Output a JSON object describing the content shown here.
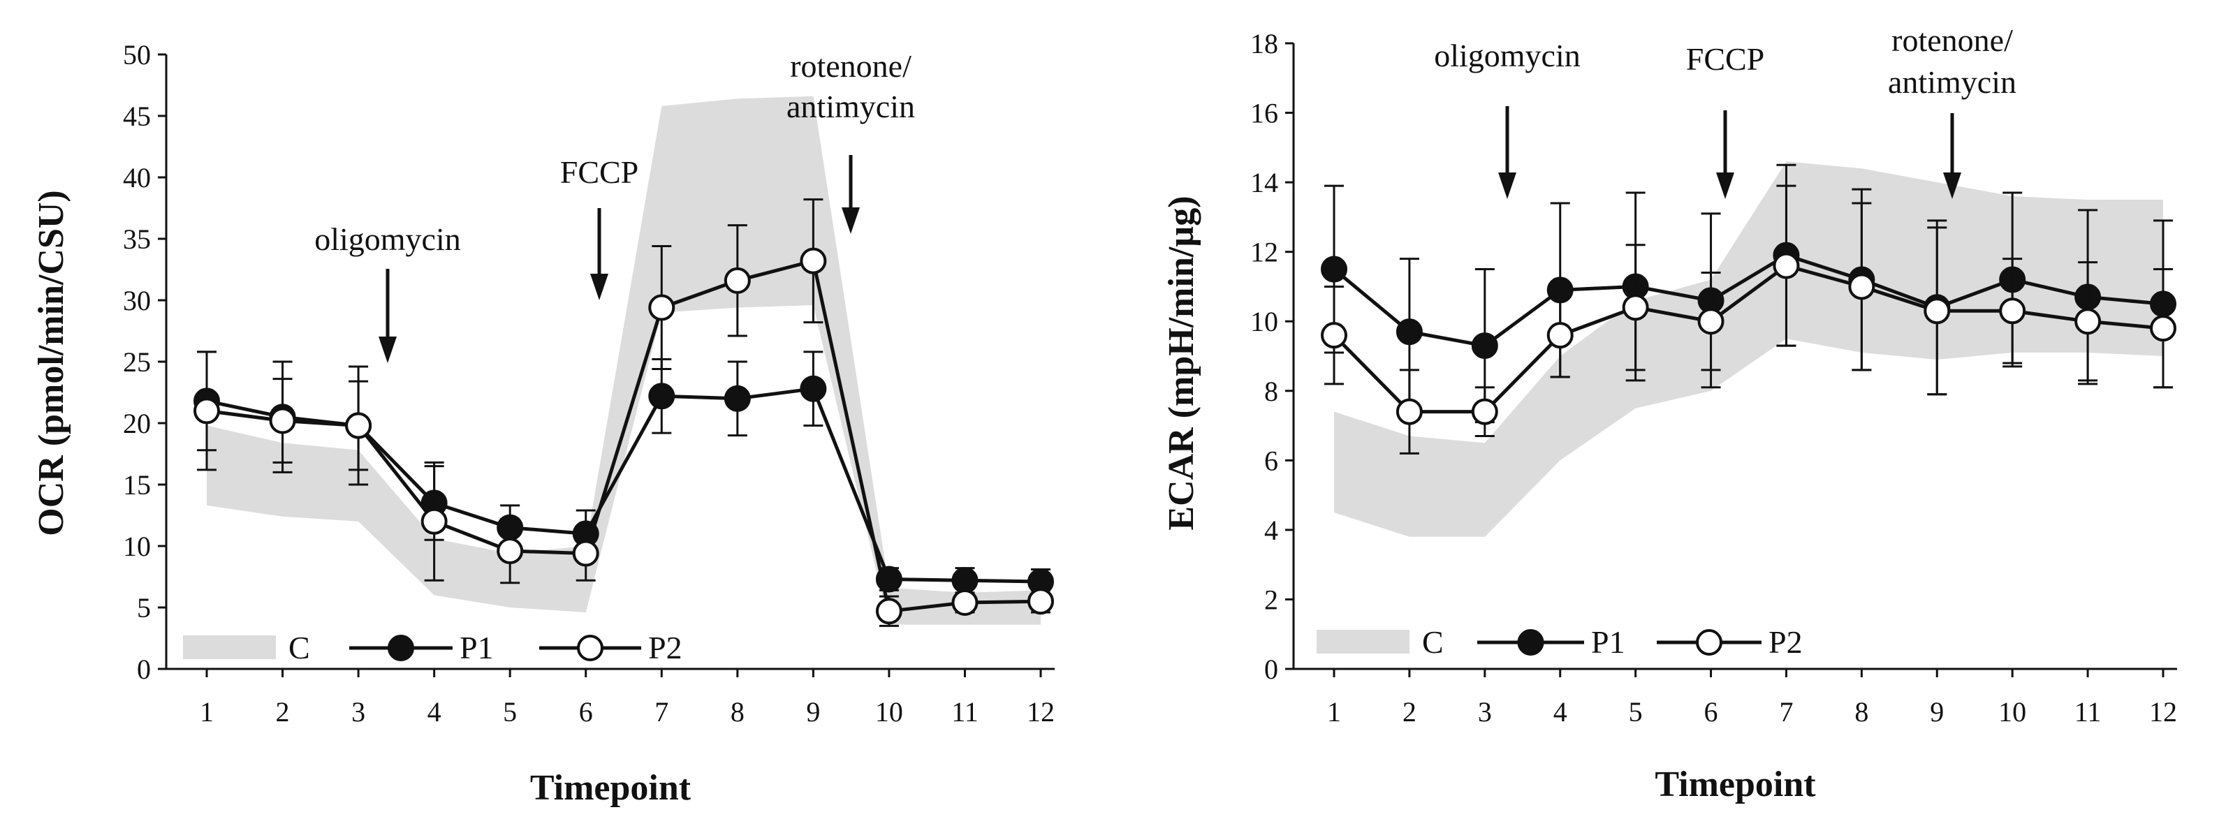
{
  "chart_data": [
    {
      "type": "line",
      "ylabel": "OCR (pmol/min/CSU)",
      "xlabel": "Timepoint",
      "ylim": [
        0,
        50
      ],
      "yticks": [
        0,
        5,
        10,
        15,
        20,
        25,
        30,
        35,
        40,
        45,
        50
      ],
      "x": [
        1,
        2,
        3,
        4,
        5,
        6,
        7,
        8,
        9,
        10,
        11,
        12
      ],
      "control_band": {
        "name": "C",
        "lower": [
          13.3,
          12.4,
          12.0,
          6.0,
          5.0,
          4.6,
          29.0,
          29.4,
          29.6,
          3.6,
          3.6,
          3.6
        ],
        "upper": [
          19.8,
          18.4,
          17.8,
          10.6,
          9.4,
          10.0,
          45.8,
          46.4,
          46.6,
          6.6,
          6.2,
          6.4
        ]
      },
      "series": [
        {
          "name": "P1",
          "marker": "filled-circle",
          "values": [
            21.8,
            20.5,
            19.8,
            13.5,
            11.5,
            11.0,
            22.2,
            22.0,
            22.8,
            7.3,
            7.2,
            7.1
          ],
          "errors": [
            4.0,
            4.5,
            4.8,
            3.0,
            1.8,
            1.9,
            3.0,
            3.0,
            3.0,
            0.9,
            1.0,
            1.0
          ]
        },
        {
          "name": "P2",
          "marker": "open-circle",
          "values": [
            21.0,
            20.2,
            19.8,
            12.0,
            9.6,
            9.4,
            29.4,
            31.6,
            33.2,
            4.7,
            5.4,
            5.5
          ],
          "errors": [
            4.8,
            3.4,
            3.6,
            4.8,
            2.6,
            2.2,
            5.0,
            4.5,
            5.0,
            1.2,
            0.8,
            0.9
          ]
        }
      ],
      "annotations": [
        {
          "text": "oligomycin",
          "after_timepoint": 3
        },
        {
          "text": "FCCP",
          "after_timepoint": 6
        },
        {
          "text": "rotenone/",
          "text2": "antimycin",
          "after_timepoint": 9
        }
      ],
      "legend": {
        "placement": "bottom-left",
        "entries": [
          "C",
          "P1",
          "P2"
        ]
      }
    },
    {
      "type": "line",
      "ylabel": "ECAR (mpH/min/µg)",
      "xlabel": "Timepoint",
      "ylim": [
        0,
        18
      ],
      "yticks": [
        0,
        2,
        4,
        6,
        8,
        10,
        12,
        14,
        16,
        18
      ],
      "x": [
        1,
        2,
        3,
        4,
        5,
        6,
        7,
        8,
        9,
        10,
        11,
        12
      ],
      "control_band": {
        "name": "C",
        "lower": [
          4.5,
          3.8,
          3.8,
          6.0,
          7.5,
          8.0,
          9.5,
          9.1,
          8.9,
          9.1,
          9.1,
          9.0
        ],
        "upper": [
          7.4,
          6.7,
          6.5,
          9.0,
          10.6,
          11.2,
          14.6,
          14.4,
          14.0,
          13.6,
          13.5,
          13.5
        ]
      },
      "series": [
        {
          "name": "P1",
          "marker": "filled-circle",
          "values": [
            11.5,
            9.7,
            9.3,
            10.9,
            11.0,
            10.6,
            11.9,
            11.2,
            10.4,
            11.2,
            10.7,
            10.5
          ],
          "errors": [
            2.4,
            2.1,
            2.2,
            2.5,
            2.7,
            2.5,
            2.6,
            2.6,
            2.5,
            2.5,
            2.5,
            2.4
          ]
        },
        {
          "name": "P2",
          "marker": "open-circle",
          "values": [
            9.6,
            7.4,
            7.4,
            9.6,
            10.4,
            10.0,
            11.6,
            11.0,
            10.3,
            10.3,
            10.0,
            9.8
          ],
          "errors": [
            1.4,
            1.2,
            0.7,
            1.2,
            1.8,
            1.4,
            2.3,
            2.4,
            2.4,
            1.5,
            1.7,
            1.7
          ]
        }
      ],
      "annotations": [
        {
          "text": "oligomycin",
          "after_timepoint": 3
        },
        {
          "text": "FCCP",
          "after_timepoint": 6
        },
        {
          "text": "rotenone/",
          "text2": "antimycin",
          "after_timepoint": 9
        }
      ],
      "legend": {
        "placement": "bottom-left",
        "entries": [
          "C",
          "P1",
          "P2"
        ]
      }
    }
  ]
}
